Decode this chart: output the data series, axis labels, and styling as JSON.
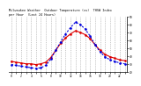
{
  "title_line1": "Milwaukee Weather  Outdoor Temperature (vs)  THSW Index",
  "title_line2": "per Hour  (Last 24 Hours)",
  "hours": [
    0,
    1,
    2,
    3,
    4,
    5,
    6,
    7,
    8,
    9,
    10,
    11,
    12,
    13,
    14,
    15,
    16,
    17,
    18,
    19,
    20,
    21,
    22,
    23
  ],
  "temp": [
    33,
    32,
    31,
    30,
    30,
    29,
    30,
    32,
    38,
    47,
    56,
    63,
    68,
    72,
    70,
    67,
    62,
    54,
    47,
    42,
    39,
    37,
    35,
    34
  ],
  "thsw": [
    29,
    28,
    27,
    26,
    25,
    24,
    25,
    28,
    36,
    47,
    58,
    68,
    76,
    83,
    80,
    74,
    65,
    54,
    45,
    39,
    35,
    33,
    31,
    30
  ],
  "temp_color": "#dd0000",
  "thsw_color": "#0000dd",
  "bg_color": "#ffffff",
  "grid_color": "#999999",
  "ylim_min": 20,
  "ylim_max": 90,
  "ytick_values": [
    20,
    30,
    40,
    50,
    60,
    70,
    80,
    90
  ],
  "ytick_labels": [
    "20",
    "30",
    "40",
    "50",
    "60",
    "70",
    "80",
    "90"
  ]
}
